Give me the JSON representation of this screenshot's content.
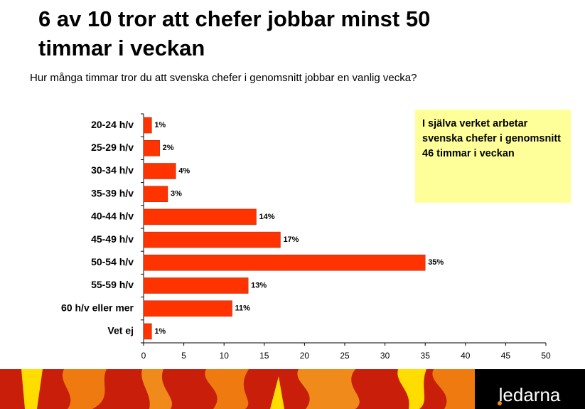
{
  "chart_data": {
    "type": "bar",
    "orientation": "horizontal",
    "title": "6 av 10 tror att chefer jobbar minst 50 timmar i veckan",
    "subtitle": "Hur många timmar tror du att svenska chefer i genomsnitt jobbar en vanlig vecka?",
    "annotation": "I själva verket arbetar svenska chefer i genomsnitt 46 timmar i veckan",
    "categories": [
      "20-24 h/v",
      "25-29 h/v",
      "30-34 h/v",
      "35-39 h/v",
      "40-44 h/v",
      "45-49 h/v",
      "50-54 h/v",
      "55-59 h/v",
      "60 h/v eller mer",
      "Vet ej"
    ],
    "values": [
      1,
      2,
      4,
      3,
      14,
      17,
      35,
      13,
      11,
      1
    ],
    "value_labels": [
      "1%",
      "2%",
      "4%",
      "3%",
      "14%",
      "17%",
      "35%",
      "13%",
      "11%",
      "1%"
    ],
    "color": "#ff3300",
    "xlim": [
      0,
      50
    ],
    "xticks": [
      0,
      5,
      10,
      15,
      20,
      25,
      30,
      35,
      40,
      45,
      50
    ],
    "grid": false
  },
  "footer": {
    "logo": "ledarna"
  }
}
